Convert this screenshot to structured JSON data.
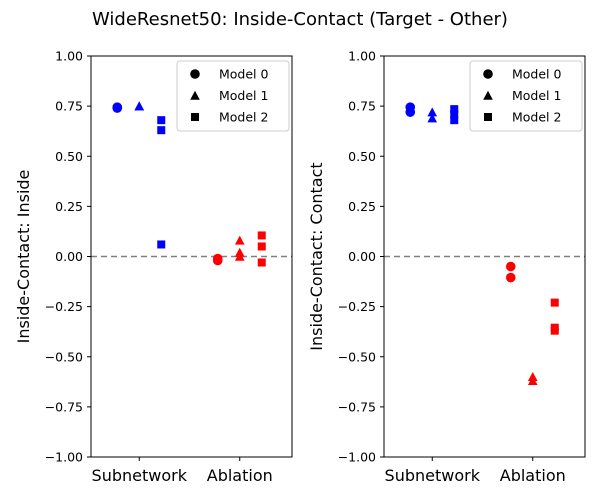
{
  "chart_data": {
    "type": "scatter",
    "title": "WideResnet50: Inside-Contact (Target - Other)",
    "legend": {
      "placement": "top-right",
      "entries": [
        {
          "label": "Model 0",
          "marker": "circle"
        },
        {
          "label": "Model 1",
          "marker": "triangle"
        },
        {
          "label": "Model 2",
          "marker": "square"
        }
      ]
    },
    "colors": {
      "Subnetwork": "#0000ff",
      "Ablation": "#ff0000",
      "reference_line": "#808080"
    },
    "panels": [
      {
        "ylabel": "Inside-Contact: Inside",
        "categories": [
          "Subnetwork",
          "Ablation"
        ],
        "ylim": [
          -1.0,
          1.0
        ],
        "yticks": [
          "−1.00",
          "−0.75",
          "−0.50",
          "−0.25",
          "0.00",
          "0.25",
          "0.50",
          "0.75",
          "1.00"
        ],
        "ytick_values": [
          -1.0,
          -0.75,
          -0.5,
          -0.25,
          0.0,
          0.25,
          0.5,
          0.75,
          1.0
        ],
        "reference_y": 0.0,
        "series": [
          {
            "model": "Model 0",
            "marker": "circle",
            "points": [
              {
                "category": "Subnetwork",
                "y": 0.745
              },
              {
                "category": "Subnetwork",
                "y": 0.74
              },
              {
                "category": "Ablation",
                "y": -0.01
              },
              {
                "category": "Ablation",
                "y": -0.02
              }
            ]
          },
          {
            "model": "Model 1",
            "marker": "triangle",
            "points": [
              {
                "category": "Subnetwork",
                "y": 0.75
              },
              {
                "category": "Subnetwork",
                "y": 0.75
              },
              {
                "category": "Ablation",
                "y": 0.08
              },
              {
                "category": "Ablation",
                "y": 0.02
              },
              {
                "category": "Ablation",
                "y": 0.0
              }
            ]
          },
          {
            "model": "Model 2",
            "marker": "square",
            "points": [
              {
                "category": "Subnetwork",
                "y": 0.68
              },
              {
                "category": "Subnetwork",
                "y": 0.63
              },
              {
                "category": "Subnetwork",
                "y": 0.06
              },
              {
                "category": "Ablation",
                "y": 0.105
              },
              {
                "category": "Ablation",
                "y": 0.05
              },
              {
                "category": "Ablation",
                "y": -0.03
              }
            ]
          }
        ]
      },
      {
        "ylabel": "Inside-Contact: Contact",
        "categories": [
          "Subnetwork",
          "Ablation"
        ],
        "ylim": [
          -1.0,
          1.0
        ],
        "yticks": [
          "−1.00",
          "−0.75",
          "−0.50",
          "−0.25",
          "0.00",
          "0.25",
          "0.50",
          "0.75",
          "1.00"
        ],
        "ytick_values": [
          -1.0,
          -0.75,
          -0.5,
          -0.25,
          0.0,
          0.25,
          0.5,
          0.75,
          1.0
        ],
        "reference_y": 0.0,
        "series": [
          {
            "model": "Model 0",
            "marker": "circle",
            "points": [
              {
                "category": "Subnetwork",
                "y": 0.745
              },
              {
                "category": "Subnetwork",
                "y": 0.72
              },
              {
                "category": "Ablation",
                "y": -0.05
              },
              {
                "category": "Ablation",
                "y": -0.105
              }
            ]
          },
          {
            "model": "Model 1",
            "marker": "triangle",
            "points": [
              {
                "category": "Subnetwork",
                "y": 0.72
              },
              {
                "category": "Subnetwork",
                "y": 0.69
              },
              {
                "category": "Ablation",
                "y": -0.6
              },
              {
                "category": "Ablation",
                "y": -0.62
              }
            ]
          },
          {
            "model": "Model 2",
            "marker": "square",
            "points": [
              {
                "category": "Subnetwork",
                "y": 0.735
              },
              {
                "category": "Subnetwork",
                "y": 0.71
              },
              {
                "category": "Subnetwork",
                "y": 0.68
              },
              {
                "category": "Ablation",
                "y": -0.23
              },
              {
                "category": "Ablation",
                "y": -0.355
              },
              {
                "category": "Ablation",
                "y": -0.37
              }
            ]
          }
        ]
      }
    ]
  }
}
